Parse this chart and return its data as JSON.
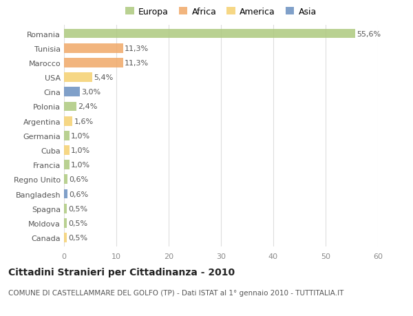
{
  "countries": [
    "Romania",
    "Tunisia",
    "Marocco",
    "USA",
    "Cina",
    "Polonia",
    "Argentina",
    "Germania",
    "Cuba",
    "Francia",
    "Regno Unito",
    "Bangladesh",
    "Spagna",
    "Moldova",
    "Canada"
  ],
  "values": [
    55.6,
    11.3,
    11.3,
    5.4,
    3.0,
    2.4,
    1.6,
    1.0,
    1.0,
    1.0,
    0.6,
    0.6,
    0.5,
    0.5,
    0.5
  ],
  "labels": [
    "55,6%",
    "11,3%",
    "11,3%",
    "5,4%",
    "3,0%",
    "2,4%",
    "1,6%",
    "1,0%",
    "1,0%",
    "1,0%",
    "0,6%",
    "0,6%",
    "0,5%",
    "0,5%",
    "0,5%"
  ],
  "continents": [
    "Europa",
    "Africa",
    "Africa",
    "America",
    "Asia",
    "Europa",
    "America",
    "Europa",
    "America",
    "Europa",
    "Europa",
    "Asia",
    "Europa",
    "Europa",
    "America"
  ],
  "colors": {
    "Europa": "#adc97e",
    "Africa": "#f0a868",
    "America": "#f5d070",
    "Asia": "#6a8fc0"
  },
  "xlim": [
    0,
    60
  ],
  "xticks": [
    0,
    10,
    20,
    30,
    40,
    50,
    60
  ],
  "title": "Cittadini Stranieri per Cittadinanza - 2010",
  "subtitle": "COMUNE DI CASTELLAMMARE DEL GOLFO (TP) - Dati ISTAT al 1° gennaio 2010 - TUTTITALIA.IT",
  "background_color": "#ffffff",
  "bar_height": 0.65,
  "grid_color": "#dddddd",
  "title_fontsize": 10,
  "subtitle_fontsize": 7.5,
  "tick_fontsize": 8,
  "label_fontsize": 8,
  "legend_order": [
    "Europa",
    "Africa",
    "America",
    "Asia"
  ]
}
